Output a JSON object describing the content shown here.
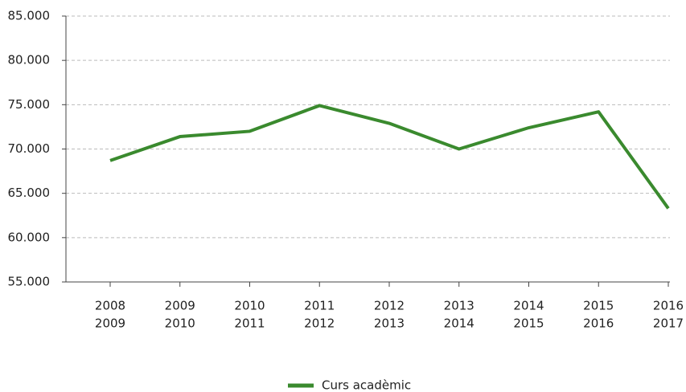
{
  "chart_data": {
    "type": "line",
    "categories": [
      [
        "2008",
        "2009"
      ],
      [
        "2009",
        "2010"
      ],
      [
        "2010",
        "2011"
      ],
      [
        "2011",
        "2012"
      ],
      [
        "2012",
        "2013"
      ],
      [
        "2013",
        "2014"
      ],
      [
        "2014",
        "2015"
      ],
      [
        "2015",
        "2016"
      ],
      [
        "2016",
        "2017"
      ]
    ],
    "series": [
      {
        "name": "Curs acadèmic",
        "color": "#3a8a2e",
        "values": [
          68700,
          71400,
          72000,
          74900,
          72900,
          70000,
          72400,
          74200,
          63300
        ]
      }
    ],
    "ylim": [
      55000,
      85000
    ],
    "yticks": [
      {
        "value": 55000,
        "label": "55.000"
      },
      {
        "value": 60000,
        "label": "60.000"
      },
      {
        "value": 65000,
        "label": "65.000"
      },
      {
        "value": 70000,
        "label": "70.000"
      },
      {
        "value": 75000,
        "label": "75.000"
      },
      {
        "value": 80000,
        "label": "80.000"
      },
      {
        "value": 85000,
        "label": "85.000"
      }
    ],
    "grid": true,
    "legend": "bottom"
  }
}
